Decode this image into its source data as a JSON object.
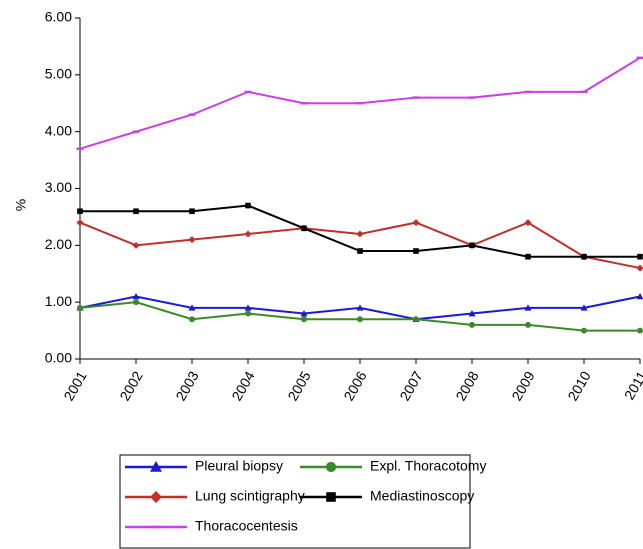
{
  "chart_data": {
    "type": "line",
    "y_label": "%",
    "categories": [
      "2001",
      "2002",
      "2003",
      "2004",
      "2005",
      "2006",
      "2007",
      "2008",
      "2009",
      "2010",
      "2011"
    ],
    "ylim": [
      0,
      6
    ],
    "yticks": [
      {
        "value": 0,
        "label": "0.00"
      },
      {
        "value": 1,
        "label": "1.00"
      },
      {
        "value": 2,
        "label": "2.00"
      },
      {
        "value": 3,
        "label": "3.00"
      },
      {
        "value": 4,
        "label": "4.00"
      },
      {
        "value": 5,
        "label": "5.00"
      },
      {
        "value": 6,
        "label": "6.00"
      }
    ],
    "grid": false,
    "legend_position": "bottom",
    "series": [
      {
        "name": "Pleural biopsy",
        "color": "#1a1ad4",
        "marker": "triangle",
        "values": [
          0.9,
          1.1,
          0.9,
          0.9,
          0.8,
          0.9,
          0.7,
          0.8,
          0.9,
          0.9,
          1.1
        ]
      },
      {
        "name": "Expl. Thoracotomy",
        "color": "#3a8a26",
        "marker": "circle",
        "values": [
          0.9,
          1.0,
          0.7,
          0.8,
          0.7,
          0.7,
          0.7,
          0.6,
          0.6,
          0.5,
          0.5
        ]
      },
      {
        "name": "Lung scintigraphy",
        "color": "#c0302a",
        "marker": "diamond",
        "values": [
          2.4,
          2.0,
          2.1,
          2.2,
          2.3,
          2.2,
          2.4,
          2.0,
          2.4,
          1.8,
          1.6
        ]
      },
      {
        "name": "Mediastinoscopy",
        "color": "#000000",
        "marker": "square",
        "values": [
          2.6,
          2.6,
          2.6,
          2.7,
          2.3,
          1.9,
          1.9,
          2.0,
          1.8,
          1.8,
          1.8
        ]
      },
      {
        "name": "Thoracocentesis",
        "color": "#cc3ee8",
        "marker": "dash",
        "values": [
          3.7,
          4.0,
          4.3,
          4.7,
          4.5,
          4.5,
          4.6,
          4.6,
          4.7,
          4.7,
          5.3
        ]
      }
    ]
  }
}
